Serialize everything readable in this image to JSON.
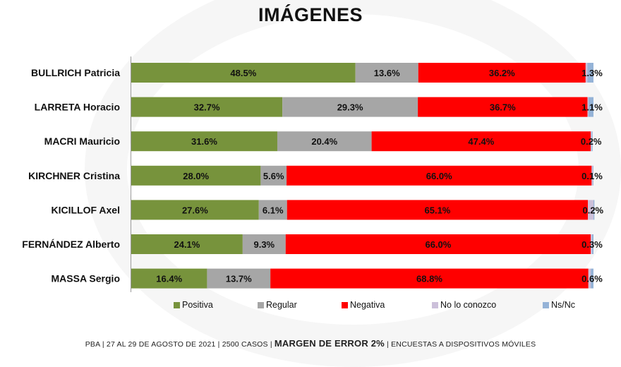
{
  "chart_data": {
    "type": "bar",
    "stacked": true,
    "orientation": "horizontal",
    "title": "IMÁGENES",
    "xlim": [
      0,
      100
    ],
    "categories": [
      "BULLRICH Patricia",
      "LARRETA Horacio",
      "MACRI Mauricio",
      "KIRCHNER Cristina",
      "KICILLOF Axel",
      "FERNÁNDEZ Alberto",
      "MASSA Sergio"
    ],
    "series": [
      {
        "name": "Positiva",
        "color": "#77933c",
        "values": [
          48.5,
          32.7,
          31.6,
          28.0,
          27.6,
          24.1,
          16.4
        ],
        "labels": [
          "48.5%",
          "32.7%",
          "31.6%",
          "28.0%",
          "27.6%",
          "24.1%",
          "16.4%"
        ]
      },
      {
        "name": "Regular",
        "color": "#a6a6a6",
        "values": [
          13.6,
          29.3,
          20.4,
          5.6,
          6.1,
          9.3,
          13.7
        ],
        "labels": [
          "13.6%",
          "29.3%",
          "20.4%",
          "5.6%",
          "6.1%",
          "9.3%",
          "13.7%"
        ]
      },
      {
        "name": "Negativa",
        "color": "#ff0000",
        "values": [
          36.2,
          36.7,
          47.4,
          66.0,
          65.1,
          66.0,
          68.8
        ],
        "labels": [
          "36.2%",
          "36.7%",
          "47.4%",
          "66.0%",
          "65.1%",
          "66.0%",
          "68.8%"
        ]
      },
      {
        "name": "No lo conozco",
        "color": "#ccc0da",
        "values": [
          0.4,
          0.2,
          0.2,
          0.3,
          1.2,
          0.3,
          0.5
        ],
        "labels": [
          "",
          "",
          "",
          "",
          "",
          "",
          ""
        ]
      },
      {
        "name": "Ns/Nc",
        "color": "#95b3d7",
        "values": [
          1.3,
          1.1,
          0.2,
          0.1,
          0.2,
          0.3,
          0.6
        ],
        "labels": [
          "1.3%",
          "1.1%",
          "0.2%",
          "0.1%",
          "0.2%",
          "0.3%",
          "0.6%"
        ]
      }
    ],
    "legend_position": "bottom",
    "grid": false
  },
  "footer": {
    "left": "PBA | 27 AL 29 DE AGOSTO DE 2021 | 2500 CASOS |",
    "bold": "MARGEN DE ERROR 2%",
    "right": "| ENCUESTAS A DISPOSITIVOS MÓVILES"
  }
}
